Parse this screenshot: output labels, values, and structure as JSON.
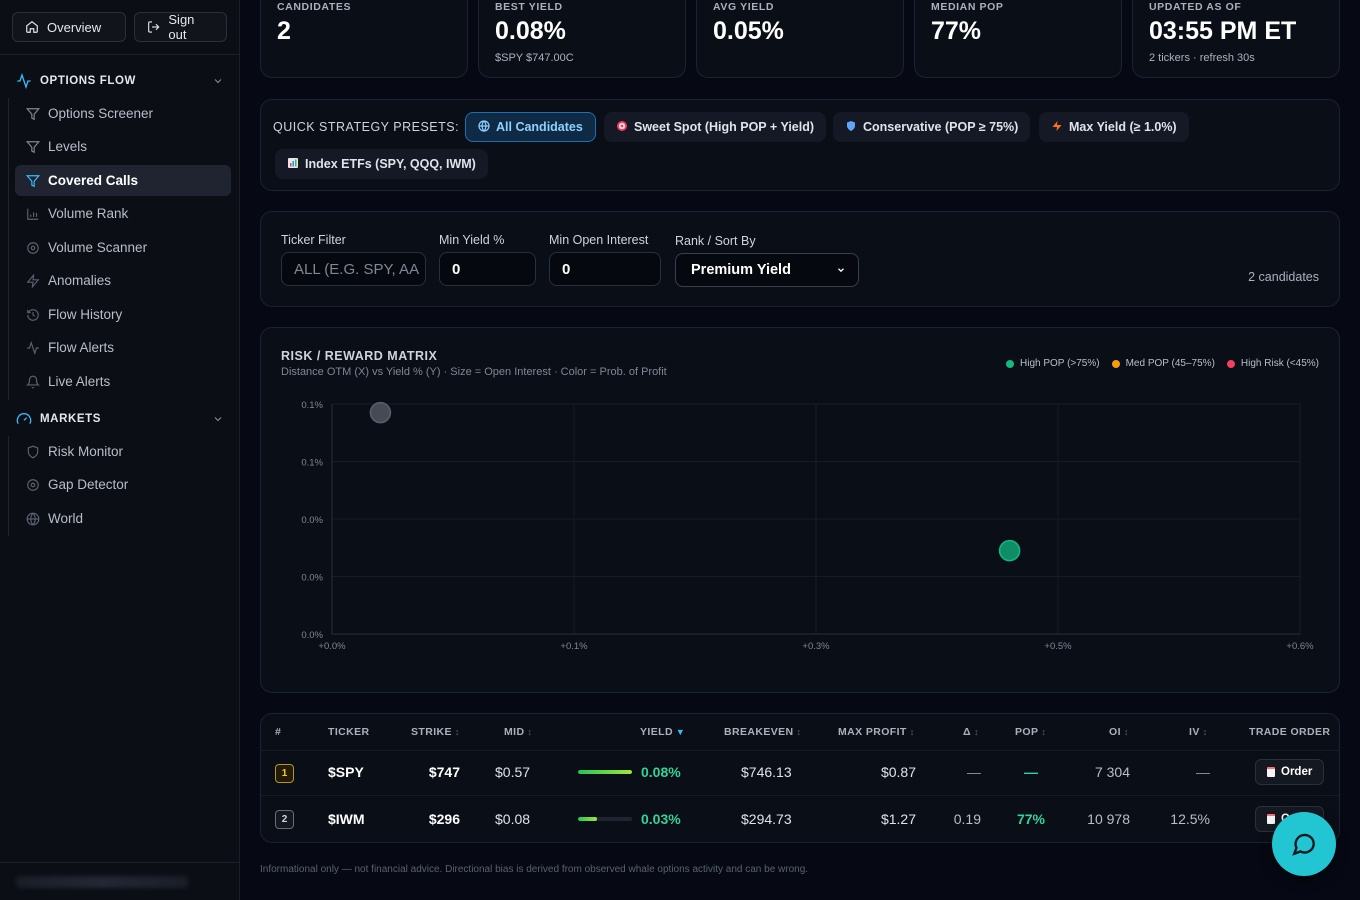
{
  "sidebar": {
    "overview_label": "Overview",
    "signout_label": "Sign out",
    "sections": [
      {
        "label": "OPTIONS FLOW",
        "icon": "activity-icon"
      },
      {
        "label": "MARKETS",
        "icon": "gauge-icon"
      }
    ],
    "options_flow_items": [
      {
        "label": "Options Screener",
        "icon": "filter-icon"
      },
      {
        "label": "Levels",
        "icon": "filter-icon"
      },
      {
        "label": "Covered Calls",
        "icon": "filter-icon",
        "active": true
      },
      {
        "label": "Volume Rank",
        "icon": "bar-chart-icon"
      },
      {
        "label": "Volume Scanner",
        "icon": "scan-icon"
      },
      {
        "label": "Anomalies",
        "icon": "zap-icon"
      },
      {
        "label": "Flow History",
        "icon": "history-icon"
      },
      {
        "label": "Flow Alerts",
        "icon": "activity-icon"
      },
      {
        "label": "Live Alerts",
        "icon": "bell-icon"
      }
    ],
    "markets_items": [
      {
        "label": "Risk Monitor",
        "icon": "shield-icon"
      },
      {
        "label": "Gap Detector",
        "icon": "scan-icon"
      },
      {
        "label": "World",
        "icon": "globe-icon"
      }
    ]
  },
  "stats": [
    {
      "label": "CANDIDATES",
      "value": "2",
      "sub": ""
    },
    {
      "label": "BEST YIELD",
      "value": "0.08%",
      "sub": "$SPY $747.00C"
    },
    {
      "label": "AVG YIELD",
      "value": "0.05%",
      "sub": ""
    },
    {
      "label": "MEDIAN POP",
      "value": "77%",
      "sub": ""
    },
    {
      "label": "UPDATED AS OF",
      "value": "03:55 PM ET",
      "sub": "2 tickers · refresh 30s"
    }
  ],
  "presets": {
    "label": "QUICK STRATEGY PRESETS:",
    "chips": [
      {
        "label": "All Candidates",
        "icon": "globe-icon",
        "active": true
      },
      {
        "label": "Sweet Spot (High POP + Yield)",
        "icon": "target-icon"
      },
      {
        "label": "Conservative (POP ≥ 75%)",
        "icon": "shield-icon"
      },
      {
        "label": "Max Yield (≥ 1.0%)",
        "icon": "zap-icon"
      },
      {
        "label": "Index ETFs (SPY, QQQ, IWM)",
        "icon": "bar-chart-icon"
      }
    ]
  },
  "filters": {
    "ticker_label": "Ticker Filter",
    "ticker_placeholder": "ALL (E.G. SPY, AA",
    "min_yield_label": "Min Yield %",
    "min_yield_value": "0",
    "min_oi_label": "Min Open Interest",
    "min_oi_value": "0",
    "sort_label": "Rank / Sort By",
    "sort_value": "Premium Yield",
    "candidates_text": "2 candidates"
  },
  "matrix": {
    "title": "RISK / REWARD MATRIX",
    "subtitle": "Distance OTM (X) vs Yield % (Y) · Size = Open Interest · Color = Prob. of Profit",
    "legend": [
      {
        "label": "High POP (>75%)",
        "color": "#10b981"
      },
      {
        "label": "Med POP (45–75%)",
        "color": "#f59e0b"
      },
      {
        "label": "High Risk (<45%)",
        "color": "#f43f5e"
      }
    ]
  },
  "chart_data": {
    "type": "scatter",
    "title": "RISK / REWARD MATRIX",
    "xlabel": "Distance OTM",
    "ylabel": "Yield %",
    "x_ticks": [
      "+0.0%",
      "+0.1%",
      "+0.3%",
      "+0.5%",
      "+0.6%"
    ],
    "y_ticks": [
      "0.1%",
      "0.1%",
      "0.0%",
      "0.0%",
      "0.0%"
    ],
    "xlim": [
      0,
      0.6
    ],
    "ylim": [
      0,
      0.08
    ],
    "grid": true,
    "legend_position": "top-right",
    "points": [
      {
        "ticker": "$SPY",
        "x": 0.03,
        "y": 0.077,
        "pop": null,
        "color": "#5b5f6b"
      },
      {
        "ticker": "$IWM",
        "x": 0.42,
        "y": 0.029,
        "pop": 77,
        "color": "#10b981"
      }
    ]
  },
  "table": {
    "headers": [
      "#",
      "TICKER",
      "STRIKE",
      "MID",
      "YIELD",
      "BREAKEVEN",
      "MAX PROFIT",
      "Δ",
      "POP",
      "OI",
      "IV",
      "TRADE ORDER"
    ],
    "rows": [
      {
        "rank": "1",
        "ticker": "$SPY",
        "strike": "$747",
        "mid": "$0.57",
        "yield": "0.08%",
        "yield_fraction": 1.0,
        "breakeven": "$746.13",
        "max_profit": "$0.87",
        "delta": "—",
        "pop": "—",
        "oi": "7 304",
        "iv": "—",
        "order": "Order"
      },
      {
        "rank": "2",
        "ticker": "$IWM",
        "strike": "$296",
        "mid": "$0.08",
        "yield": "0.03%",
        "yield_fraction": 0.35,
        "breakeven": "$294.73",
        "max_profit": "$1.27",
        "delta": "0.19",
        "pop": "77%",
        "oi": "10 978",
        "iv": "12.5%",
        "order": "Order"
      }
    ]
  },
  "disclaimer": "Informational only — not financial advice. Directional bias is derived from observed whale options activity and can be wrong."
}
